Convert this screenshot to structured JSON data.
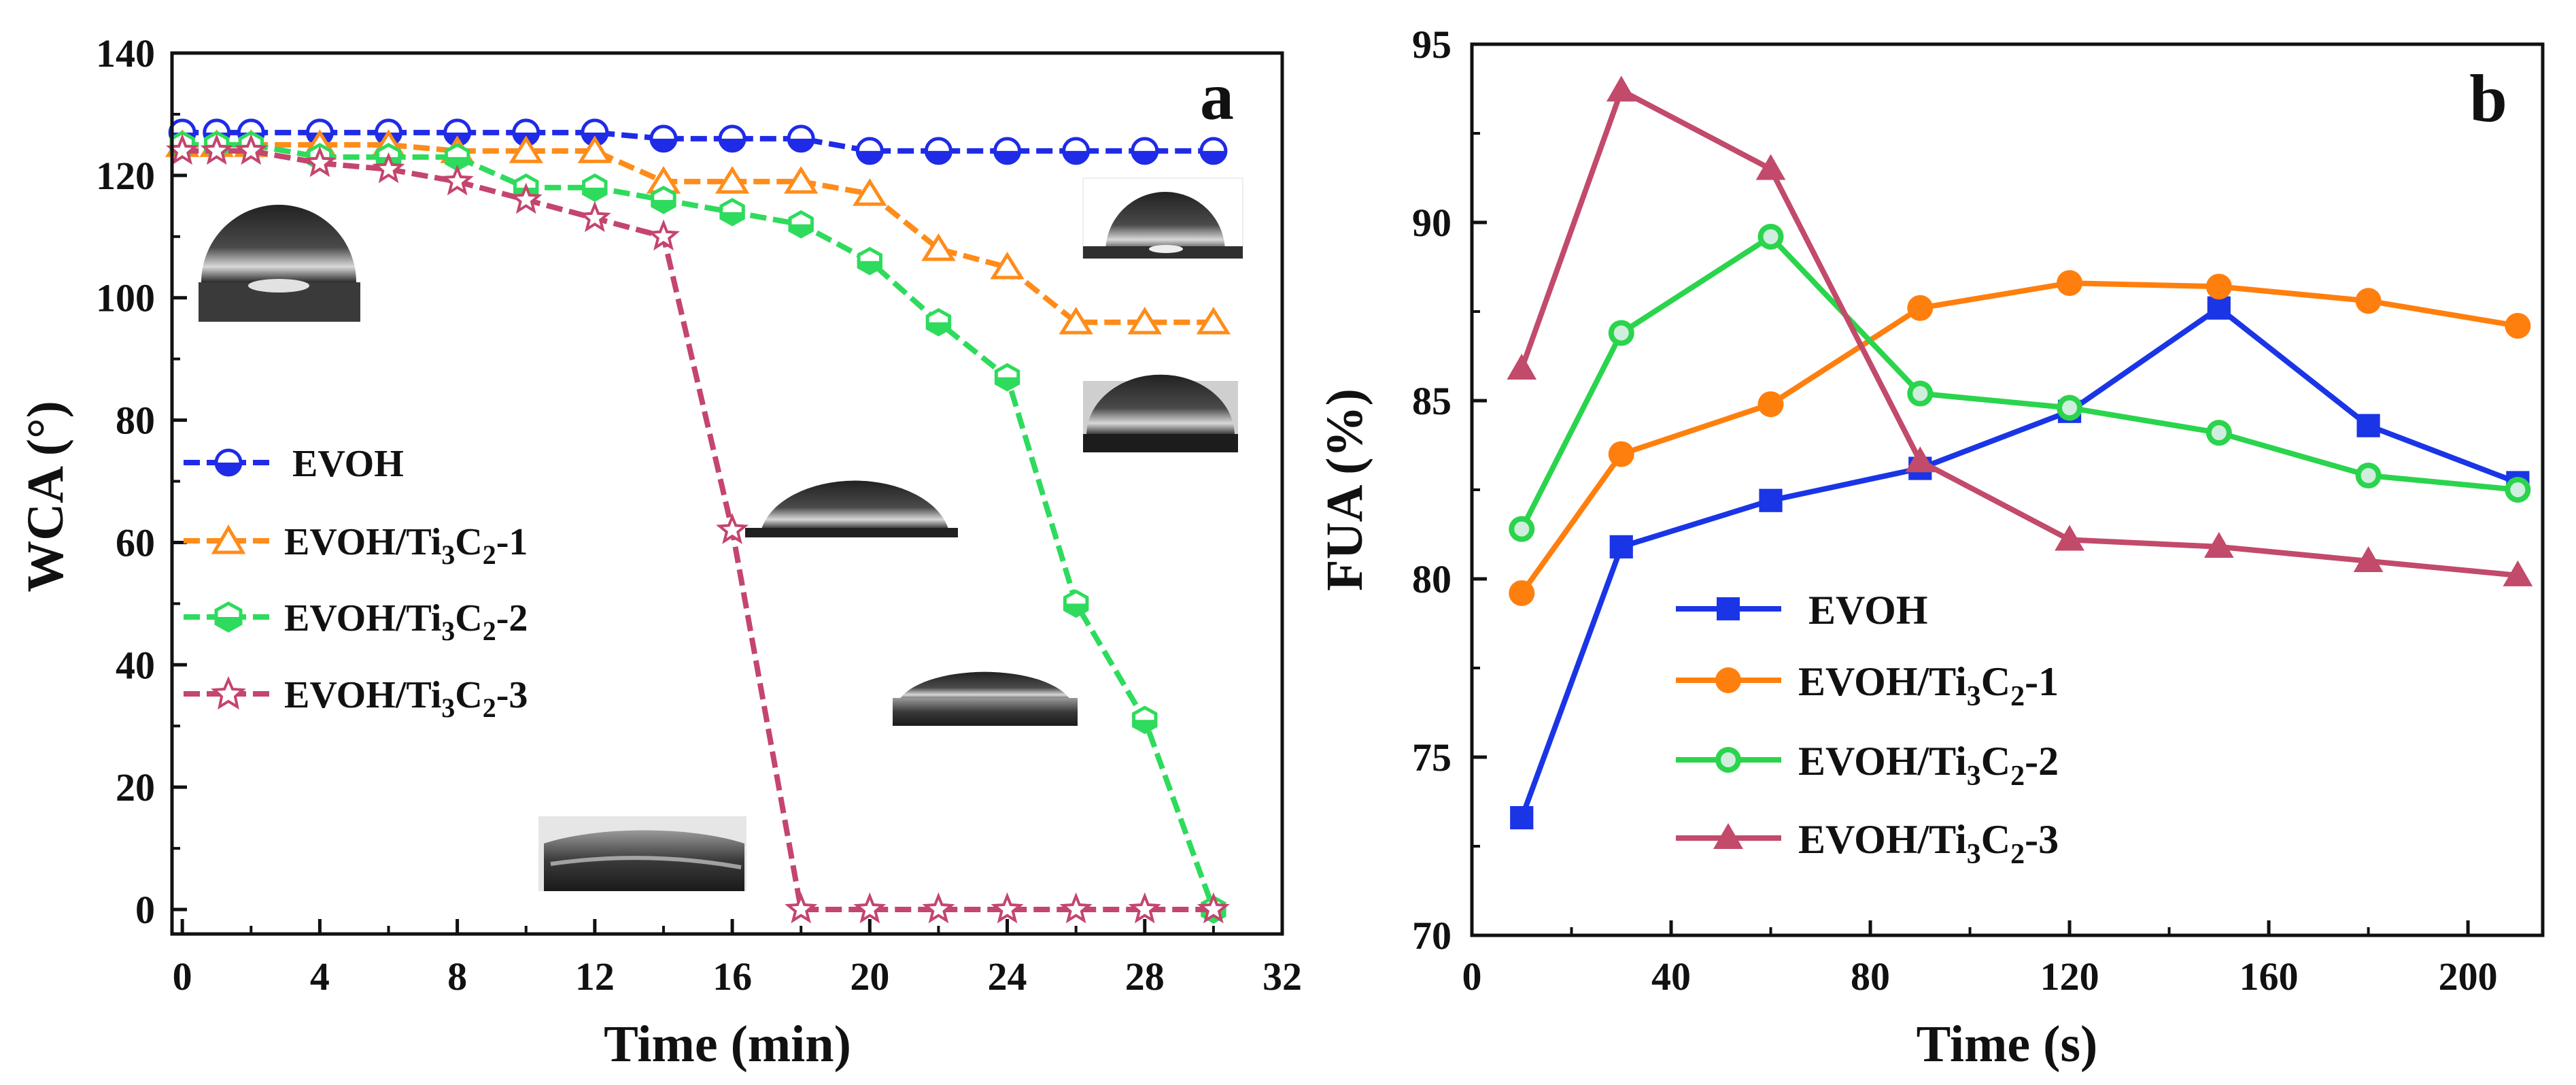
{
  "figure": {
    "panels": [
      {
        "id": "a",
        "panel_label": "a",
        "xlabel": "Time (min)",
        "ylabel": "WCA (°)"
      },
      {
        "id": "b",
        "panel_label": "b",
        "xlabel": "Time (s)",
        "ylabel": "FUA (%)"
      }
    ]
  },
  "legend_a": {
    "items": [
      {
        "main": "EVOH",
        "sub3": "",
        "mid": "",
        "sub2": "",
        "tail": ""
      },
      {
        "main": "EVOH/Ti",
        "sub3": "3",
        "mid": "C",
        "sub2": "2",
        "tail": "-1"
      },
      {
        "main": "EVOH/Ti",
        "sub3": "3",
        "mid": "C",
        "sub2": "2",
        "tail": "-2"
      },
      {
        "main": "EVOH/Ti",
        "sub3": "3",
        "mid": "C",
        "sub2": "2",
        "tail": "-3"
      }
    ]
  },
  "legend_b": {
    "items": [
      {
        "main": "EVOH",
        "sub3": "",
        "mid": "",
        "sub2": "",
        "tail": ""
      },
      {
        "main": "EVOH/Ti",
        "sub3": "3",
        "mid": "C",
        "sub2": "2",
        "tail": "-1"
      },
      {
        "main": "EVOH/Ti",
        "sub3": "3",
        "mid": "C",
        "sub2": "2",
        "tail": "-2"
      },
      {
        "main": "EVOH/Ti",
        "sub3": "3",
        "mid": "C",
        "sub2": "2",
        "tail": "-3"
      }
    ]
  },
  "chart_data": [
    {
      "type": "line",
      "title": "",
      "xlabel": "Time (min)",
      "ylabel": "WCA (°)",
      "xlim": [
        -0.3,
        32
      ],
      "ylim": [
        -4,
        140
      ],
      "xticks": [
        0,
        4,
        8,
        12,
        16,
        20,
        24,
        28,
        32
      ],
      "yticks": [
        0,
        20,
        40,
        60,
        80,
        100,
        120,
        140
      ],
      "series": [
        {
          "name": "EVOH",
          "color": "#1f2be6",
          "marker": "half-circle",
          "x": [
            0,
            1,
            2,
            4,
            6,
            8,
            10,
            12,
            14,
            16,
            18,
            20,
            22,
            24,
            26,
            28,
            30
          ],
          "y": [
            127,
            127,
            127,
            127,
            127,
            127,
            127,
            127,
            126,
            126,
            126,
            124,
            124,
            124,
            124,
            124,
            124
          ]
        },
        {
          "name": "EVOH/Ti3C2-1",
          "color": "#ff8c1a",
          "marker": "open-triangle",
          "x": [
            0,
            1,
            2,
            4,
            6,
            8,
            10,
            12,
            14,
            16,
            18,
            20,
            22,
            24,
            26,
            28,
            30
          ],
          "y": [
            125,
            125,
            125,
            125,
            125,
            124,
            124,
            124,
            119,
            119,
            119,
            117,
            108,
            105,
            96,
            96,
            96
          ]
        },
        {
          "name": "EVOH/Ti3C2-2",
          "color": "#2edb5c",
          "marker": "half-hexagon",
          "x": [
            0,
            1,
            2,
            4,
            6,
            8,
            10,
            12,
            14,
            16,
            18,
            20,
            22,
            24,
            26,
            28,
            30
          ],
          "y": [
            125,
            125,
            125,
            123,
            123,
            123,
            118,
            118,
            116,
            114,
            112,
            106,
            96,
            87,
            50,
            31,
            0
          ]
        },
        {
          "name": "EVOH/Ti3C2-3",
          "color": "#c4456d",
          "marker": "open-star",
          "x": [
            0,
            1,
            2,
            4,
            6,
            8,
            10,
            12,
            14,
            16,
            18,
            20,
            22,
            24,
            26,
            28,
            30
          ],
          "y": [
            124,
            124,
            124,
            122,
            121,
            119,
            116,
            113,
            110,
            62,
            0,
            0,
            0,
            0,
            0,
            0,
            0
          ]
        }
      ],
      "annotations": [
        "a"
      ]
    },
    {
      "type": "line",
      "title": "",
      "xlabel": "Time (s)",
      "ylabel": "FUA (%)",
      "xlim": [
        0,
        215
      ],
      "ylim": [
        70,
        95
      ],
      "xticks": [
        0,
        40,
        80,
        120,
        160,
        200
      ],
      "yticks": [
        70,
        75,
        80,
        85,
        90,
        95
      ],
      "series": [
        {
          "name": "EVOH",
          "color": "#1a35e6",
          "marker": "square",
          "x": [
            10,
            30,
            60,
            90,
            120,
            150,
            180,
            210
          ],
          "y": [
            73.3,
            80.9,
            82.2,
            83.1,
            84.7,
            87.6,
            84.3,
            82.7
          ]
        },
        {
          "name": "EVOH/Ti3C2-1",
          "color": "#ff7f0e",
          "marker": "circle",
          "x": [
            10,
            30,
            60,
            90,
            120,
            150,
            180,
            210
          ],
          "y": [
            79.6,
            83.5,
            84.9,
            87.6,
            88.3,
            88.2,
            87.8,
            87.1
          ]
        },
        {
          "name": "EVOH/Ti3C2-2",
          "color": "#2ad44c",
          "marker": "circle-light",
          "x": [
            10,
            30,
            60,
            90,
            120,
            150,
            180,
            210
          ],
          "y": [
            81.4,
            86.9,
            89.6,
            85.2,
            84.8,
            84.1,
            82.9,
            82.5
          ]
        },
        {
          "name": "EVOH/Ti3C2-3",
          "color": "#c24a6a",
          "marker": "triangle",
          "x": [
            10,
            30,
            60,
            90,
            120,
            150,
            180,
            210
          ],
          "y": [
            85.9,
            93.7,
            91.5,
            83.3,
            81.1,
            80.9,
            80.5,
            80.1
          ]
        }
      ],
      "annotations": [
        "b"
      ]
    }
  ]
}
